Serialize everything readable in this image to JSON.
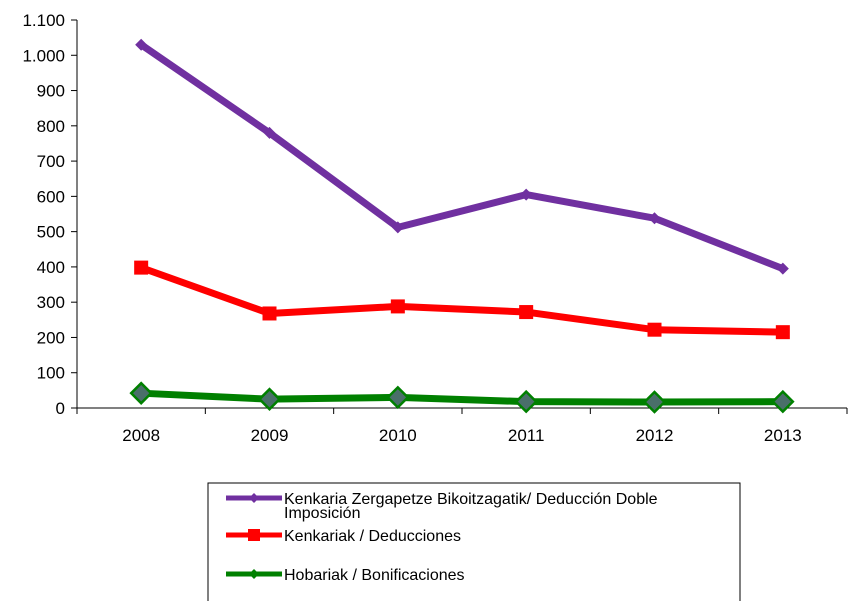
{
  "chart_data": {
    "type": "line",
    "categories": [
      "2008",
      "2009",
      "2010",
      "2011",
      "2012",
      "2013"
    ],
    "ylim": [
      0,
      1100
    ],
    "yticks": [
      0,
      100,
      200,
      300,
      400,
      500,
      600,
      700,
      800,
      900,
      1000,
      1100
    ],
    "ytick_labels": [
      "0",
      "100",
      "200",
      "300",
      "400",
      "500",
      "600",
      "700",
      "800",
      "900",
      "1.000",
      "1.100"
    ],
    "grid": false,
    "legend_position": "bottom",
    "series": [
      {
        "name": "Kenkaria Zergapetze Bikoitzagatik/ Deducción Doble Imposición",
        "legend_lines": [
          "Kenkaria Zergapetze Bikoitzagatik/ Deducción Doble",
          "Imposición"
        ],
        "color": "#7030A0",
        "marker": "diamond",
        "values": [
          1030,
          780,
          512,
          605,
          538,
          395
        ]
      },
      {
        "name": "Kenkariak / Deducciones",
        "legend_lines": [
          "Kenkariak / Deducciones"
        ],
        "color": "#FF0000",
        "marker": "square",
        "values": [
          398,
          268,
          288,
          272,
          222,
          215
        ]
      },
      {
        "name": "Hobariak / Bonificaciones",
        "legend_lines": [
          "Hobariak / Bonificaciones"
        ],
        "color": "#008000",
        "marker": "diamond",
        "values": [
          42,
          25,
          30,
          18,
          17,
          18
        ]
      }
    ]
  }
}
